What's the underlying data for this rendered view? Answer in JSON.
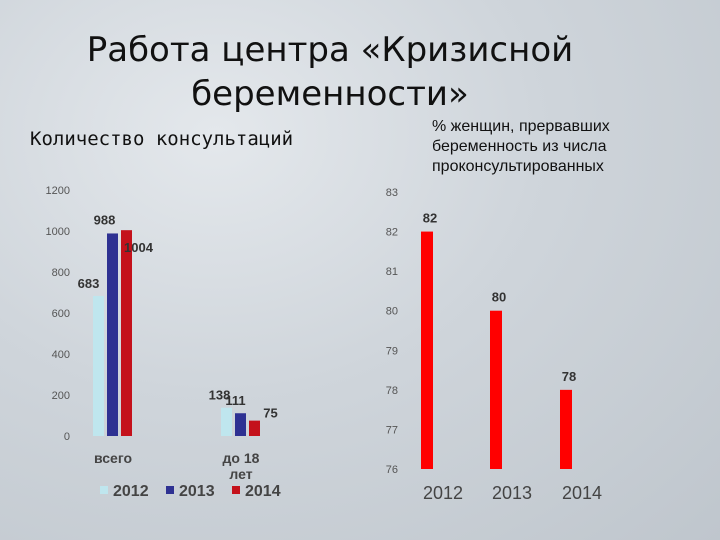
{
  "slide": {
    "title_line1": "Работа центра «Кризисной",
    "title_line2": "беременности»"
  },
  "chart_data": [
    {
      "type": "bar",
      "title": "Количество консультаций",
      "categories": [
        "всего",
        "до 18 лет"
      ],
      "series": [
        {
          "name": "2012",
          "color": "#bfe6ee",
          "values": [
            683,
            138
          ]
        },
        {
          "name": "2013",
          "color": "#2e3192",
          "values": [
            988,
            111
          ]
        },
        {
          "name": "2014",
          "color": "#c4111b",
          "values": [
            1004,
            75
          ]
        }
      ],
      "ylim": [
        0,
        1200
      ],
      "yticks": [
        0,
        200,
        400,
        600,
        800,
        1000,
        1200
      ],
      "legend": "bottom",
      "grid": false
    },
    {
      "type": "bar",
      "title": "% женщин, прервавших беременность из числа проконсультированных",
      "categories": [
        "2012",
        "2013",
        "2014"
      ],
      "values": [
        82,
        80,
        78
      ],
      "color": "#ff0000",
      "ylim": [
        76,
        83
      ],
      "yticks": [
        76,
        77,
        78,
        79,
        80,
        81,
        82,
        83
      ],
      "grid": false
    }
  ]
}
